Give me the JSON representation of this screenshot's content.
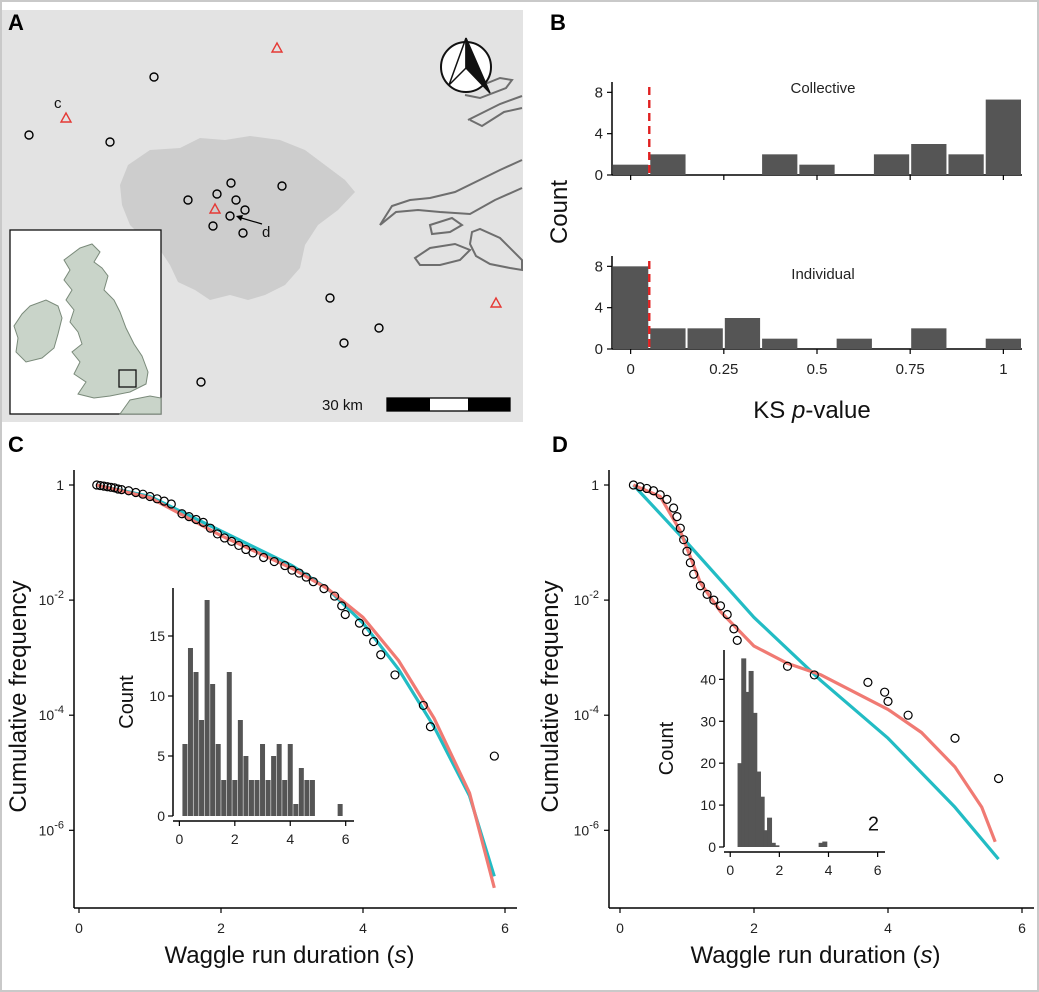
{
  "panel_labels": {
    "a": "A",
    "b": "B",
    "c": "C",
    "d": "D"
  },
  "colors": {
    "map_background": "#e3e3e3",
    "london": "#cdcdcd",
    "site_circle": "#000000",
    "site_triangle": "#e53935",
    "bar": "#555555",
    "threshold": "#e02020",
    "teal_fit": "#22bcc4",
    "salmon_fit": "#f07a73"
  },
  "map": {
    "site_labels": {
      "c": "c",
      "d": "d"
    },
    "scale_label": "30 km"
  },
  "chart_data": [
    {
      "id": "B-collective",
      "type": "bar",
      "title": "Collective",
      "xlabel": "KS p-value",
      "ylabel": "Count",
      "xlim": [
        -0.05,
        1.05
      ],
      "ylim": [
        0,
        9
      ],
      "y_ticks": [
        "0",
        "4",
        "8"
      ],
      "x": [
        0.0,
        0.1,
        0.4,
        0.5,
        0.7,
        0.8,
        0.9,
        1.0
      ],
      "values": [
        1,
        2,
        2,
        1,
        2,
        3,
        2,
        7.3
      ],
      "threshold": 0.05
    },
    {
      "id": "B-individual",
      "type": "bar",
      "title": "Individual",
      "xlabel": "KS p-value",
      "ylabel": "Count",
      "xlim": [
        -0.05,
        1.05
      ],
      "ylim": [
        0,
        9
      ],
      "x_ticks": [
        "0",
        "0.25",
        "0.5",
        "0.75",
        "1"
      ],
      "y_ticks": [
        "0",
        "4",
        "8"
      ],
      "x": [
        0.0,
        0.1,
        0.2,
        0.3,
        0.4,
        0.6,
        0.8,
        1.0
      ],
      "values": [
        8,
        2,
        2,
        3,
        1,
        1,
        2,
        1
      ],
      "threshold": 0.05
    },
    {
      "id": "C",
      "type": "scatter",
      "xlabel_prefix": "Waggle run duration (",
      "xlabel_italic": "s",
      "xlabel_suffix": ")",
      "ylabel": "Cumulative frequency",
      "x_ticks": [
        "0",
        "2",
        "4",
        "6"
      ],
      "y_ticks": [
        {
          "base": "1",
          "exp": ""
        },
        {
          "base": "10",
          "exp": "-2"
        },
        {
          "base": "10",
          "exp": "-4"
        },
        {
          "base": "10",
          "exp": "-6"
        }
      ],
      "xlim": [
        0,
        6
      ],
      "log10_ylim": [
        -7.35,
        0
      ],
      "points": [
        [
          0.25,
          0.0
        ],
        [
          0.3,
          -0.01
        ],
        [
          0.35,
          -0.02
        ],
        [
          0.4,
          -0.03
        ],
        [
          0.45,
          -0.04
        ],
        [
          0.5,
          -0.05
        ],
        [
          0.55,
          -0.07
        ],
        [
          0.6,
          -0.08
        ],
        [
          0.7,
          -0.1
        ],
        [
          0.8,
          -0.13
        ],
        [
          0.9,
          -0.16
        ],
        [
          1.0,
          -0.2
        ],
        [
          1.1,
          -0.24
        ],
        [
          1.2,
          -0.28
        ],
        [
          1.3,
          -0.33
        ],
        [
          1.45,
          -0.5
        ],
        [
          1.55,
          -0.55
        ],
        [
          1.65,
          -0.6
        ],
        [
          1.75,
          -0.65
        ],
        [
          1.85,
          -0.75
        ],
        [
          1.95,
          -0.85
        ],
        [
          2.05,
          -0.92
        ],
        [
          2.15,
          -0.98
        ],
        [
          2.25,
          -1.05
        ],
        [
          2.35,
          -1.12
        ],
        [
          2.45,
          -1.18
        ],
        [
          2.6,
          -1.26
        ],
        [
          2.75,
          -1.33
        ],
        [
          2.9,
          -1.4
        ],
        [
          3.0,
          -1.48
        ],
        [
          3.1,
          -1.53
        ],
        [
          3.2,
          -1.6
        ],
        [
          3.3,
          -1.68
        ],
        [
          3.45,
          -1.8
        ],
        [
          3.6,
          -1.93
        ],
        [
          3.7,
          -2.1
        ],
        [
          3.75,
          -2.25
        ],
        [
          3.95,
          -2.4
        ],
        [
          4.05,
          -2.55
        ],
        [
          4.15,
          -2.72
        ],
        [
          4.25,
          -2.95
        ],
        [
          4.45,
          -3.3
        ],
        [
          4.85,
          -3.83
        ],
        [
          4.95,
          -4.2
        ],
        [
          5.85,
          -4.71
        ]
      ],
      "series": [
        {
          "type": "line",
          "points": [
            [
              0.25,
              0.0
            ],
            [
              1.0,
              -0.2
            ],
            [
              2.0,
              -0.8
            ],
            [
              3.0,
              -1.4
            ],
            [
              3.5,
              -1.8
            ],
            [
              4.0,
              -2.4
            ],
            [
              4.5,
              -3.2
            ],
            [
              5.0,
              -4.2
            ],
            [
              5.5,
              -5.4
            ],
            [
              5.85,
              -6.8
            ]
          ]
        },
        {
          "type": "line",
          "points": [
            [
              0.25,
              0.0
            ],
            [
              1.0,
              -0.22
            ],
            [
              2.0,
              -0.88
            ],
            [
              3.0,
              -1.45
            ],
            [
              3.5,
              -1.8
            ],
            [
              4.0,
              -2.3
            ],
            [
              4.5,
              -3.05
            ],
            [
              5.0,
              -4.05
            ],
            [
              5.5,
              -5.35
            ],
            [
              5.85,
              -7.0
            ]
          ]
        }
      ],
      "inset": {
        "type": "bar",
        "ylabel": "Count",
        "x_ticks": [
          "0",
          "2",
          "4",
          "6"
        ],
        "y_ticks": [
          "0",
          "5",
          "10",
          "15"
        ],
        "xlim": [
          -0.05,
          6.3
        ],
        "ylim": [
          0,
          19
        ],
        "x": [
          0.2,
          0.4,
          0.6,
          0.8,
          1.0,
          1.2,
          1.4,
          1.6,
          1.8,
          2.0,
          2.2,
          2.4,
          2.6,
          2.8,
          3.0,
          3.2,
          3.4,
          3.6,
          3.8,
          4.0,
          4.2,
          4.4,
          4.6,
          4.8,
          5.8
        ],
        "values": [
          6,
          14,
          12,
          8,
          18,
          11,
          6,
          3,
          12,
          3,
          8,
          5,
          3,
          3,
          6,
          3,
          5,
          6,
          3,
          6,
          1,
          4,
          3,
          3,
          1
        ]
      }
    },
    {
      "id": "D",
      "type": "scatter",
      "xlabel_prefix": "Waggle run duration (",
      "xlabel_italic": "s",
      "xlabel_suffix": ")",
      "ylabel": "Cumulative frequency",
      "x_ticks": [
        "0",
        "2",
        "4",
        "6"
      ],
      "y_ticks": [
        {
          "base": "1",
          "exp": ""
        },
        {
          "base": "10",
          "exp": "-2"
        },
        {
          "base": "10",
          "exp": "-4"
        },
        {
          "base": "10",
          "exp": "-6"
        }
      ],
      "xlim": [
        0,
        6
      ],
      "log10_ylim": [
        -7.35,
        0
      ],
      "annotation": "2",
      "annotation_x": 3.7,
      "annotation_log10y": -6.0,
      "points": [
        [
          0.2,
          0.0
        ],
        [
          0.3,
          -0.03
        ],
        [
          0.4,
          -0.06
        ],
        [
          0.5,
          -0.1
        ],
        [
          0.6,
          -0.17
        ],
        [
          0.7,
          -0.25
        ],
        [
          0.8,
          -0.4
        ],
        [
          0.85,
          -0.55
        ],
        [
          0.9,
          -0.75
        ],
        [
          0.95,
          -0.95
        ],
        [
          1.0,
          -1.15
        ],
        [
          1.05,
          -1.35
        ],
        [
          1.1,
          -1.55
        ],
        [
          1.2,
          -1.75
        ],
        [
          1.3,
          -1.9
        ],
        [
          1.4,
          -2.0
        ],
        [
          1.5,
          -2.1
        ],
        [
          1.6,
          -2.25
        ],
        [
          1.7,
          -2.5
        ],
        [
          1.75,
          -2.7
        ],
        [
          2.5,
          -3.15
        ],
        [
          2.9,
          -3.3
        ],
        [
          3.7,
          -3.43
        ],
        [
          3.95,
          -3.6
        ],
        [
          4.0,
          -3.76
        ],
        [
          4.3,
          -4.0
        ],
        [
          5.0,
          -4.4
        ],
        [
          5.65,
          -5.1
        ]
      ],
      "series": [
        {
          "type": "line",
          "points": [
            [
              0.2,
              0.0
            ],
            [
              1.0,
              -1.0
            ],
            [
              2.0,
              -2.3
            ],
            [
              3.0,
              -3.4
            ],
            [
              4.0,
              -4.4
            ],
            [
              5.0,
              -5.6
            ],
            [
              5.65,
              -6.5
            ]
          ]
        },
        {
          "type": "line",
          "points": [
            [
              0.2,
              0.0
            ],
            [
              0.6,
              -0.2
            ],
            [
              0.9,
              -0.8
            ],
            [
              1.2,
              -1.7
            ],
            [
              1.5,
              -2.2
            ],
            [
              2.0,
              -2.8
            ],
            [
              2.5,
              -3.1
            ],
            [
              3.0,
              -3.3
            ],
            [
              3.5,
              -3.6
            ],
            [
              4.0,
              -3.9
            ],
            [
              4.5,
              -4.3
            ],
            [
              5.0,
              -4.9
            ],
            [
              5.4,
              -5.6
            ],
            [
              5.6,
              -6.2
            ]
          ]
        }
      ],
      "inset": {
        "type": "bar",
        "ylabel": "Count",
        "x_ticks": [
          "0",
          "2",
          "4",
          "6"
        ],
        "y_ticks": [
          "0",
          "10",
          "20",
          "30",
          "40"
        ],
        "xlim": [
          -0.05,
          6.3
        ],
        "ylim": [
          0,
          47
        ],
        "x": [
          0.4,
          0.55,
          0.7,
          0.85,
          1.0,
          1.15,
          1.3,
          1.45,
          1.6,
          1.75,
          1.9,
          3.7,
          3.85
        ],
        "values": [
          20,
          45,
          37,
          42,
          32,
          18,
          12,
          4,
          7,
          1,
          0.4,
          1,
          1.3
        ]
      }
    }
  ]
}
